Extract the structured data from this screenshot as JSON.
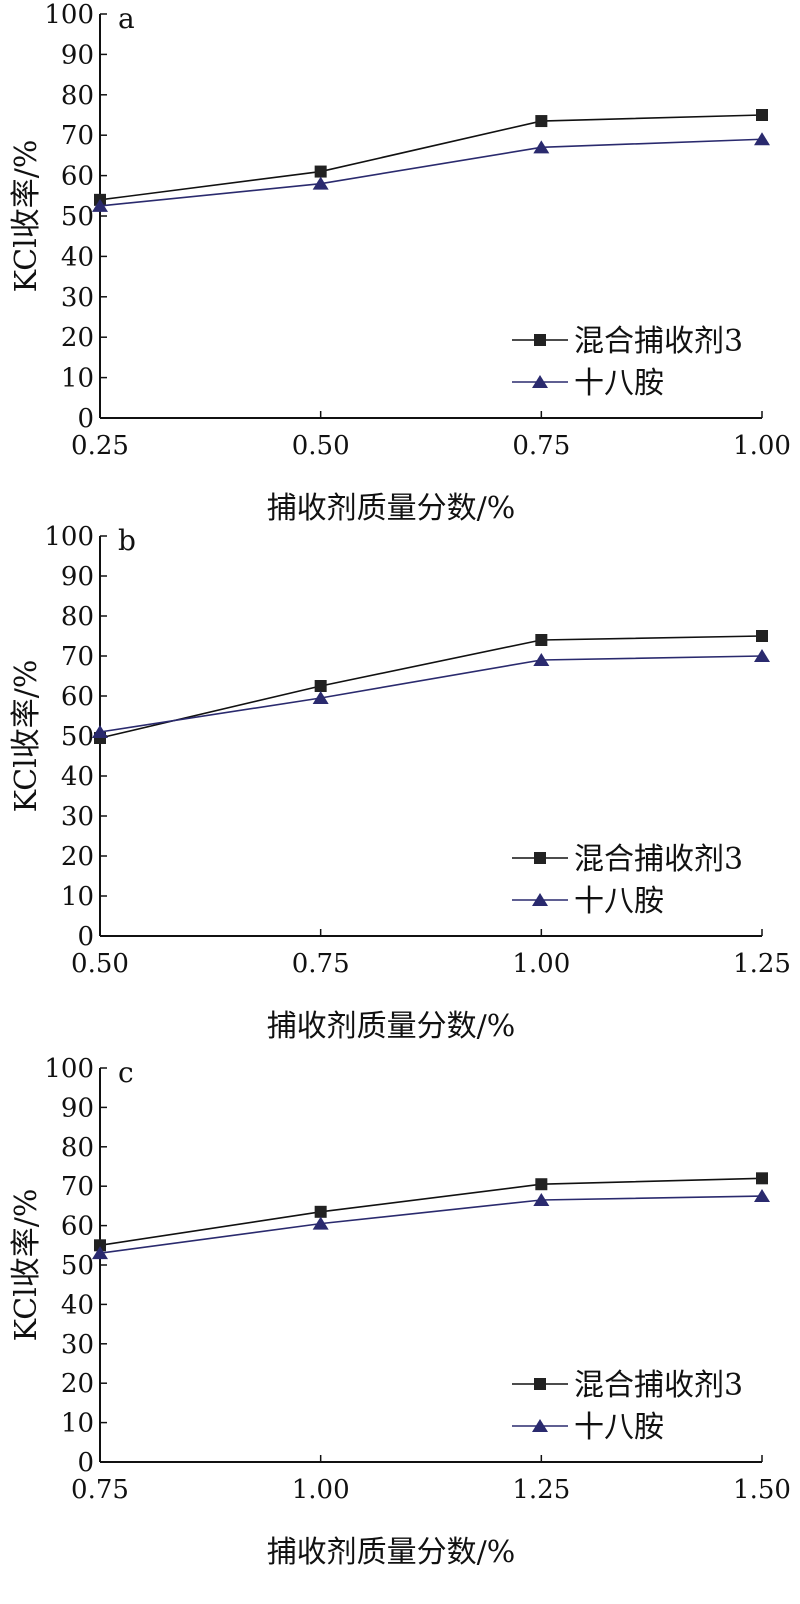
{
  "chart_data": [
    {
      "type": "line",
      "panel_label": "a",
      "categories": [
        "0.25",
        "0.50",
        "0.75",
        "1.00"
      ],
      "x": [
        0.25,
        0.5,
        0.75,
        1.0
      ],
      "ylim": [
        0,
        100
      ],
      "yticks": [
        0,
        10,
        20,
        30,
        40,
        50,
        60,
        70,
        80,
        90,
        100
      ],
      "xlabel": "捕收剂质量分数/%",
      "ylabel": "KCl收率/%",
      "legend_position": "bottom-right",
      "series": [
        {
          "name": "混合捕收剂3",
          "marker": "square",
          "color": "#111111",
          "values": [
            54,
            61,
            73.5,
            75
          ]
        },
        {
          "name": "十八胺",
          "marker": "triangle",
          "color": "#2a2a6e",
          "values": [
            52.5,
            58,
            67,
            69
          ]
        }
      ]
    },
    {
      "type": "line",
      "panel_label": "b",
      "categories": [
        "0.50",
        "0.75",
        "1.00",
        "1.25"
      ],
      "x": [
        0.5,
        0.75,
        1.0,
        1.25
      ],
      "ylim": [
        0,
        100
      ],
      "yticks": [
        0,
        10,
        20,
        30,
        40,
        50,
        60,
        70,
        80,
        90,
        100
      ],
      "xlabel": "捕收剂质量分数/%",
      "ylabel": "KCl收率/%",
      "legend_position": "bottom-right",
      "series": [
        {
          "name": "混合捕收剂3",
          "marker": "square",
          "color": "#111111",
          "values": [
            49.5,
            62.5,
            74,
            75
          ]
        },
        {
          "name": "十八胺",
          "marker": "triangle",
          "color": "#2a2a6e",
          "values": [
            51,
            59.5,
            69,
            70
          ]
        }
      ]
    },
    {
      "type": "line",
      "panel_label": "c",
      "categories": [
        "0.75",
        "1.00",
        "1.25",
        "1.50"
      ],
      "x": [
        0.75,
        1.0,
        1.25,
        1.5
      ],
      "ylim": [
        0,
        100
      ],
      "yticks": [
        0,
        10,
        20,
        30,
        40,
        50,
        60,
        70,
        80,
        90,
        100
      ],
      "xlabel": "捕收剂质量分数/%",
      "ylabel": "KCl收率/%",
      "legend_position": "bottom-right",
      "series": [
        {
          "name": "混合捕收剂3",
          "marker": "square",
          "color": "#111111",
          "values": [
            55,
            63.5,
            70.5,
            72
          ]
        },
        {
          "name": "十八胺",
          "marker": "triangle",
          "color": "#2a2a6e",
          "values": [
            53,
            60.5,
            66.5,
            67.5
          ]
        }
      ]
    }
  ]
}
